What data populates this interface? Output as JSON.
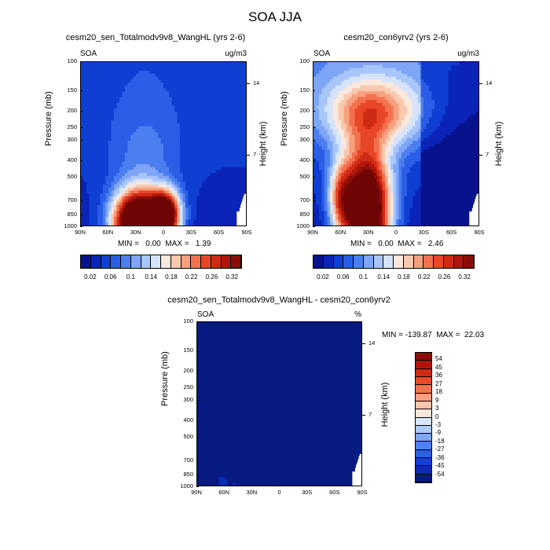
{
  "figure": {
    "title": "SOA JJA"
  },
  "levels_abs": [
    0.02,
    0.04,
    0.06,
    0.08,
    0.1,
    0.12,
    0.14,
    0.16,
    0.18,
    0.2,
    0.22,
    0.24,
    0.26,
    0.28,
    0.3,
    0.32
  ],
  "colors_abs": [
    "#08128c",
    "#0a24b8",
    "#0f3fd2",
    "#2a5ee6",
    "#4b7ff0",
    "#7fa5f6",
    "#a9c6fa",
    "#d5e4fb",
    "#fbe8dc",
    "#f9c9ae",
    "#f7a07f",
    "#f3714f",
    "#e74727",
    "#cf2a14",
    "#b0150b",
    "#8a0e07",
    "#6f0505"
  ],
  "levels_diff": [
    -54,
    -45,
    -36,
    -27,
    -18,
    -9,
    -3,
    0,
    3,
    9,
    18,
    27,
    36,
    45,
    54
  ],
  "colors_diff": [
    "#071a82",
    "#0a2cb2",
    "#1442d0",
    "#2c5fe2",
    "#4f81ee",
    "#7ea6f6",
    "#aecbfa",
    "#d6e6fc",
    "#fde7da",
    "#fbc6aa",
    "#f7a07e",
    "#f2744f",
    "#e84a27",
    "#cf2a14",
    "#b0150b",
    "#8a0e07"
  ],
  "labelbar": {
    "abs_labels": [
      "0.02",
      "0.06",
      "0.1",
      "0.14",
      "0.18",
      "0.22",
      "0.26",
      "0.32"
    ],
    "diff_labels": [
      "54",
      "45",
      "36",
      "27",
      "18",
      "9",
      "3",
      "0",
      "-3",
      "-9",
      "-18",
      "-27",
      "-36",
      "-45",
      "-54"
    ]
  },
  "chart_data": [
    {
      "type": "heatmap",
      "title": "cesm20_sen_Totalmodv9v8_WangHL (yrs 2-6)",
      "left_label": "SOA",
      "units": "ug/m3",
      "ylabel": "Pressure (mb)",
      "ylabel_right": "Height (km)",
      "x_ticks": [
        "90N",
        "60N",
        "30N",
        "0",
        "30S",
        "60S",
        "90S"
      ],
      "y_ticks": [
        "100",
        "150",
        "200",
        "250",
        "300",
        "400",
        "500",
        "700",
        "850",
        "1000"
      ],
      "y_right_ticks": [
        "14",
        "7"
      ],
      "stats": "MIN =   0.00  MAX =   1.39",
      "min": 0.0,
      "max": 1.39,
      "xlim": [
        90,
        -90
      ],
      "ylim": [
        1000,
        100
      ]
    },
    {
      "type": "heatmap",
      "title": "cesm20_con6yrv2 (yrs 2-6)",
      "left_label": "SOA",
      "units": "ug/m3",
      "ylabel": "Pressure (mb)",
      "ylabel_right": "Height (km)",
      "x_ticks": [
        "90N",
        "60N",
        "30N",
        "0",
        "30S",
        "60S",
        "90S"
      ],
      "y_ticks": [
        "100",
        "150",
        "200",
        "250",
        "300",
        "400",
        "500",
        "700",
        "850",
        "1000"
      ],
      "y_right_ticks": [
        "14",
        "7"
      ],
      "stats": "MIN =   0.00  MAX =   2.46",
      "min": 0.0,
      "max": 2.46,
      "xlim": [
        90,
        -90
      ],
      "ylim": [
        1000,
        100
      ]
    },
    {
      "type": "heatmap",
      "title": "cesm20_sen_Totalmodv9v8_WangHL - cesm20_con6yrv2",
      "left_label": "SOA",
      "units": "%",
      "ylabel": "Pressure (mb)",
      "ylabel_right": "Height (km)",
      "x_ticks": [
        "90N",
        "60N",
        "30N",
        "0",
        "30S",
        "60S",
        "90S"
      ],
      "y_ticks": [
        "100",
        "150",
        "200",
        "250",
        "300",
        "400",
        "500",
        "700",
        "850",
        "1000"
      ],
      "y_right_ticks": [
        "14",
        "7"
      ],
      "stats": "MIN = -139.87  MAX =  22.03",
      "min": -139.87,
      "max": 22.03,
      "xlim": [
        90,
        -90
      ],
      "ylim": [
        1000,
        100
      ]
    }
  ]
}
